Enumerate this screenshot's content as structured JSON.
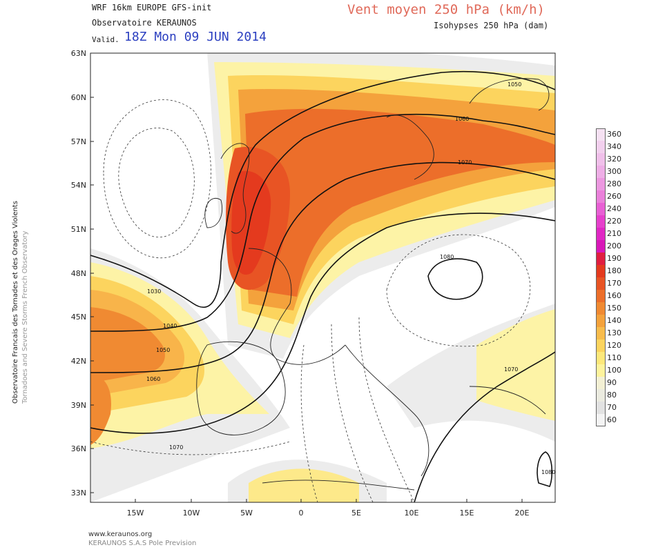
{
  "header": {
    "model_line": "WRF 16km EUROPE  GFS-init",
    "observatory": "Observatoire KERAUNOS",
    "valid_label": "Valid.",
    "valid_date": "18Z Mon 09 JUN 2014",
    "title": "Vent moyen 250 hPa (km/h)",
    "subtitle": "Isohypses 250 hPa (dam)"
  },
  "side_text": {
    "line1": "Observatoire Francais des Tornades et des Orages Violents",
    "line2": "Tornadoes and Severe Storms French Observatory"
  },
  "footer": {
    "url": "www.keraunos.org",
    "company": "KERAUNOS S.A.S Pole Prevision"
  },
  "axes": {
    "lat_labels": [
      "63N",
      "60N",
      "57N",
      "54N",
      "51N",
      "48N",
      "45N",
      "42N",
      "39N",
      "36N",
      "33N"
    ],
    "lon_labels": [
      "15W",
      "10W",
      "5W",
      "0",
      "5E",
      "10E",
      "15E",
      "20E"
    ]
  },
  "isohypse_labels": [
    "1030",
    "1040",
    "1050",
    "1060",
    "1070",
    "1050",
    "1060",
    "1070",
    "1080",
    "1070",
    "1080"
  ],
  "legend": {
    "entries": [
      {
        "label": "360",
        "color": "#f5e1f2"
      },
      {
        "label": "340",
        "color": "#f2d0ee"
      },
      {
        "label": "320",
        "color": "#f0c0ea"
      },
      {
        "label": "300",
        "color": "#eeaee6"
      },
      {
        "label": "280",
        "color": "#ec98e0"
      },
      {
        "label": "260",
        "color": "#ea80da"
      },
      {
        "label": "240",
        "color": "#e860d4"
      },
      {
        "label": "220",
        "color": "#e640cc"
      },
      {
        "label": "210",
        "color": "#e028c4"
      },
      {
        "label": "200",
        "color": "#d818b8"
      },
      {
        "label": "190",
        "color": "#e01e40"
      },
      {
        "label": "180",
        "color": "#e43a1e"
      },
      {
        "label": "170",
        "color": "#e85424"
      },
      {
        "label": "160",
        "color": "#ec6e2a"
      },
      {
        "label": "150",
        "color": "#f08a32"
      },
      {
        "label": "140",
        "color": "#f4a23c"
      },
      {
        "label": "130",
        "color": "#f8bc4c"
      },
      {
        "label": "120",
        "color": "#fcd45e"
      },
      {
        "label": "110",
        "color": "#fde87a"
      },
      {
        "label": "100",
        "color": "#fef39c"
      },
      {
        "label": "90",
        "color": "#f3f0d4"
      },
      {
        "label": "80",
        "color": "#ebebe0"
      },
      {
        "label": "70",
        "color": "#e2e2e2"
      },
      {
        "label": "60",
        "color": "#f4f4f4"
      }
    ]
  }
}
